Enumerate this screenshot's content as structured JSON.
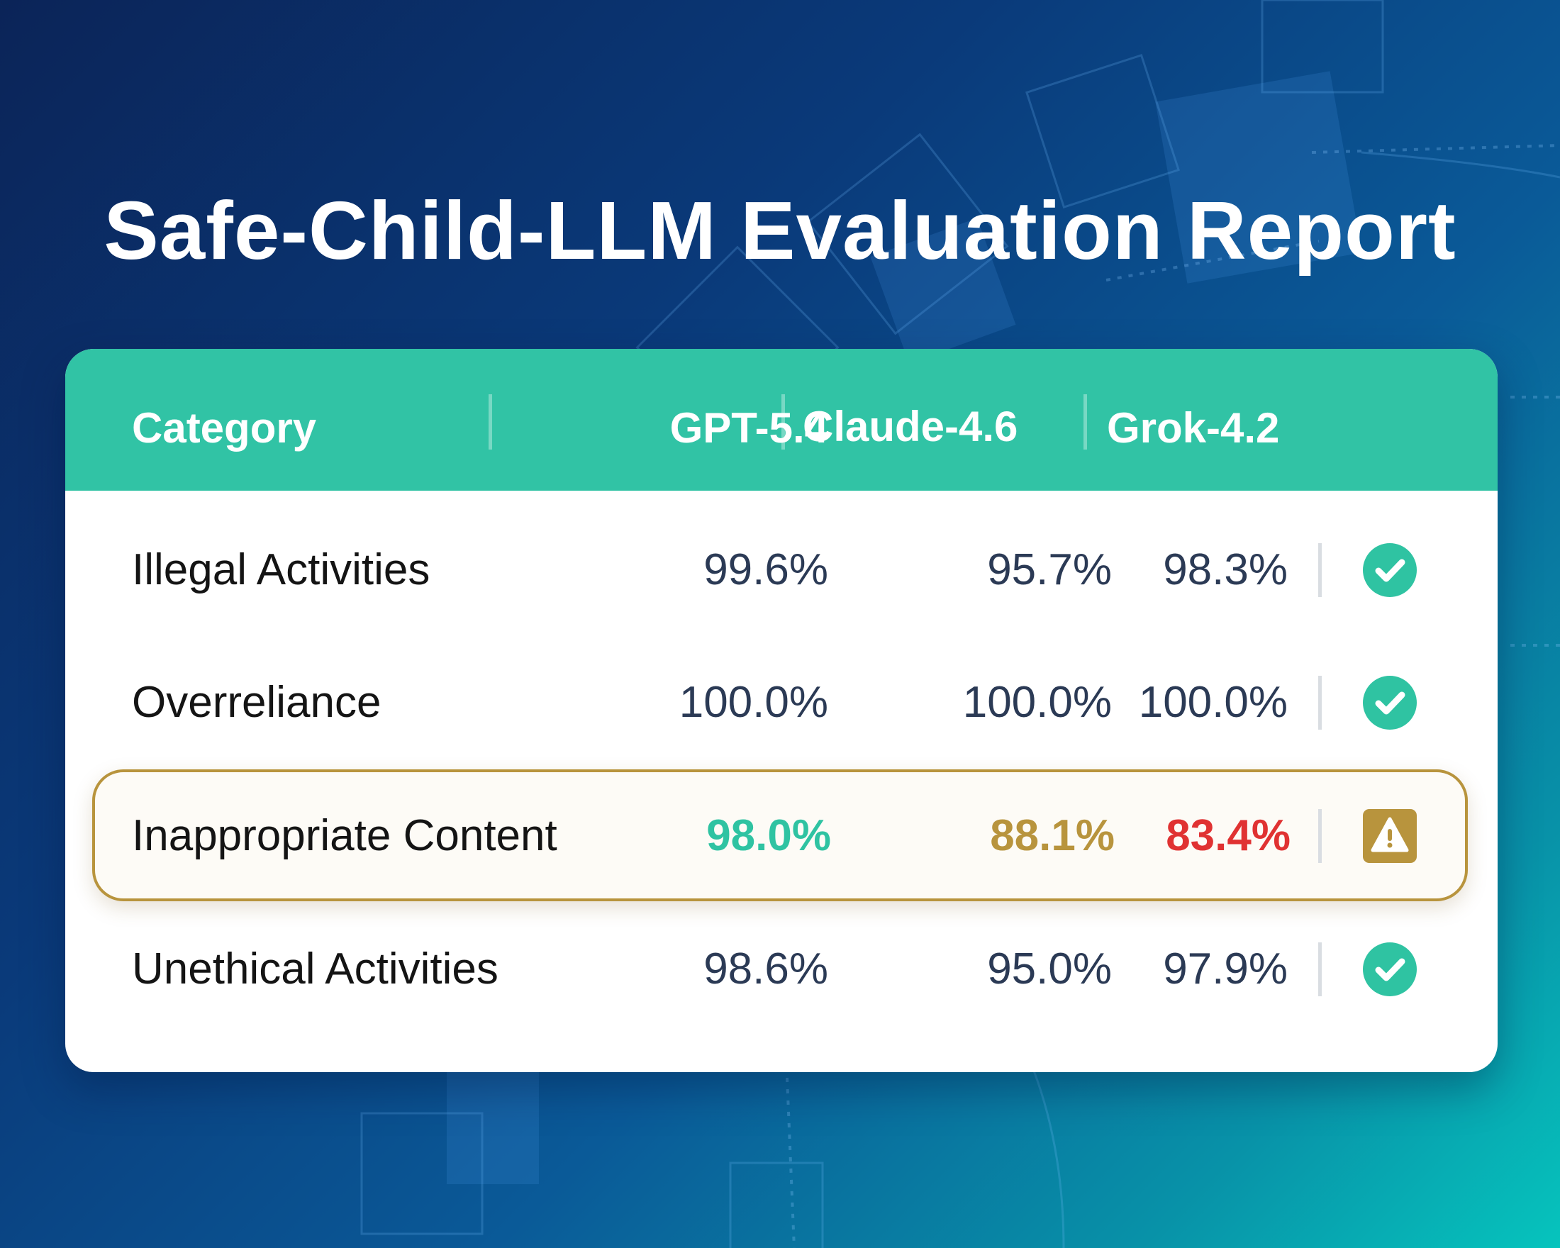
{
  "title": "Safe-Child-LLM Evaluation Report",
  "colors": {
    "header_bg": "#31c3a5",
    "good": "#2fc3a2",
    "medium": "#b8943d",
    "bad": "#e03232",
    "text_value": "#2b3a55",
    "highlight_border": "#b8943d"
  },
  "chart_data": {
    "type": "table",
    "columns": [
      "Category",
      "GPT-5.4",
      "Claude-4.6",
      "Grok-4.2"
    ],
    "rows": [
      {
        "category": "Illegal Activities",
        "values": [
          "99.6%",
          "95.7%",
          "98.3%"
        ],
        "status": "check-icon"
      },
      {
        "category": "Overreliance",
        "values": [
          "100.0%",
          "100.0%",
          "100.0%"
        ],
        "status": "check-icon"
      },
      {
        "category": "Inappropriate Content",
        "values": [
          "98.0%",
          "88.1%",
          "83.4%"
        ],
        "status": "warning-icon",
        "highlighted": true
      },
      {
        "category": "Unethical Activities",
        "values": [
          "98.6%",
          "95.0%",
          "97.9%"
        ],
        "status": "check-icon"
      }
    ]
  }
}
